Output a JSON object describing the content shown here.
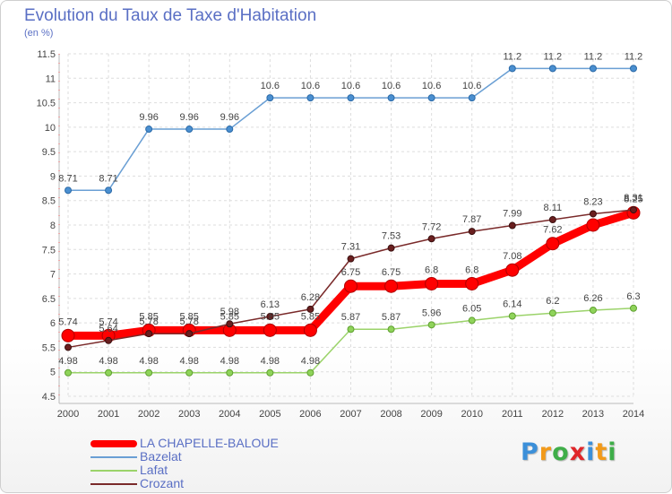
{
  "header": {
    "title": "Evolution du Taux de Taxe d'Habitation",
    "unit": "(en %)"
  },
  "brand": {
    "letters": [
      "P",
      "r",
      "o",
      "x",
      "i",
      "t",
      "i"
    ],
    "colors": [
      "#3b8fd9",
      "#f29a1a",
      "#3fae49",
      "#e0262a",
      "#3b8fd9",
      "#f29a1a",
      "#3fae49"
    ]
  },
  "chart_data": {
    "type": "line",
    "x": [
      "2000",
      "2001",
      "2002",
      "2003",
      "2004",
      "2005",
      "2006",
      "2007",
      "2008",
      "2009",
      "2010",
      "2011",
      "2012",
      "2013",
      "2014"
    ],
    "ylim": [
      4.5,
      11.5
    ],
    "yticks": [
      "4.5",
      "5",
      "5.5",
      "6",
      "6.5",
      "7",
      "7.5",
      "8",
      "8.5",
      "9",
      "9.5",
      "10",
      "10.5",
      "11",
      "11.5"
    ],
    "grid": true,
    "series": [
      {
        "name": "LA CHAPELLE-BALOUE",
        "color": "#ff0000",
        "values": [
          5.74,
          5.74,
          5.85,
          5.85,
          5.85,
          5.85,
          5.85,
          6.75,
          6.75,
          6.8,
          6.8,
          7.08,
          7.62,
          8.0,
          8.25
        ],
        "labels": [
          "5.74",
          "5.74",
          "5.85",
          "5.85",
          "5.85",
          "5.85",
          "5.85",
          "6.75",
          "6.75",
          "6.8",
          "6.8",
          "7.08",
          "7.62",
          "",
          "8.25"
        ]
      },
      {
        "name": "Bazelat",
        "color": "#6a9fd4",
        "values": [
          8.71,
          8.71,
          9.96,
          9.96,
          9.96,
          10.6,
          10.6,
          10.6,
          10.6,
          10.6,
          10.6,
          11.2,
          11.2,
          11.2,
          11.2
        ],
        "labels": [
          "8.71",
          "8.71",
          "9.96",
          "9.96",
          "9.96",
          "10.6",
          "10.6",
          "10.6",
          "10.6",
          "10.6",
          "10.6",
          "11.2",
          "11.2",
          "11.2",
          "11.2"
        ]
      },
      {
        "name": "Lafat",
        "color": "#9bd36a",
        "values": [
          4.98,
          4.98,
          4.98,
          4.98,
          4.98,
          4.98,
          4.98,
          5.87,
          5.87,
          5.96,
          6.05,
          6.14,
          6.2,
          6.26,
          6.3
        ],
        "labels": [
          "4.98",
          "4.98",
          "4.98",
          "4.98",
          "4.98",
          "4.98",
          "4.98",
          "5.87",
          "5.87",
          "5.96",
          "6.05",
          "6.14",
          "6.2",
          "6.26",
          "6.3"
        ]
      },
      {
        "name": "Crozant",
        "color": "#7a2a2a",
        "values": [
          5.5,
          5.64,
          5.78,
          5.78,
          5.98,
          6.13,
          6.28,
          7.31,
          7.53,
          7.72,
          7.87,
          7.99,
          8.11,
          8.23,
          8.31
        ],
        "labels": [
          "",
          "5.64",
          "5.78",
          "5.78",
          "5.98",
          "6.13",
          "6.28",
          "7.31",
          "7.53",
          "7.72",
          "7.87",
          "7.99",
          "8.11",
          "8.23",
          "8.31"
        ]
      }
    ]
  }
}
